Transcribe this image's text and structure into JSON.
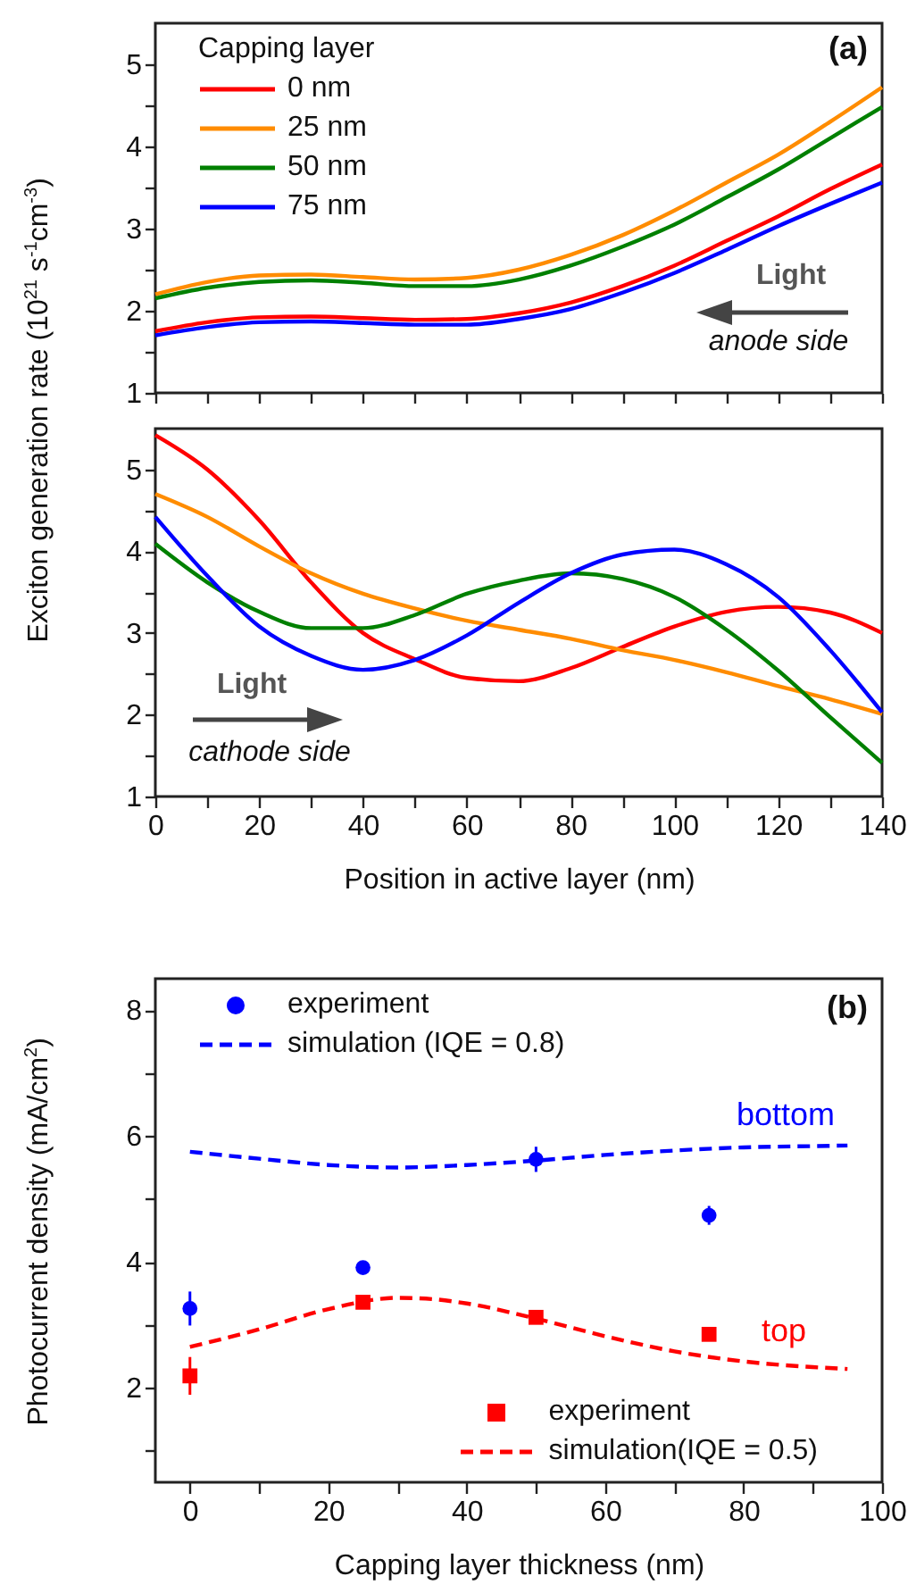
{
  "chart_data": [
    {
      "type": "line",
      "ylabel": "Exciton generation rate (10$^{21}$ s$^{-1}$cm$^{-3}$)",
      "legend_title": "Capping layer",
      "legend": "top left",
      "tick_labels": "y",
      "x": [
        0,
        10,
        20,
        30,
        40,
        50,
        60,
        70,
        80,
        90,
        100,
        110,
        120,
        130,
        140
      ],
      "series": [
        {
          "name": "0 nm",
          "color": "#ff0000",
          "values": [
            1.75,
            1.86,
            1.92,
            1.93,
            1.91,
            1.89,
            1.9,
            1.97,
            2.1,
            2.3,
            2.55,
            2.85,
            3.15,
            3.48,
            3.78
          ]
        },
        {
          "name": "25 nm",
          "color": "#ff8c00",
          "values": [
            2.2,
            2.35,
            2.43,
            2.44,
            2.41,
            2.38,
            2.4,
            2.5,
            2.68,
            2.92,
            3.22,
            3.56,
            3.9,
            4.3,
            4.72
          ]
        },
        {
          "name": "50 nm",
          "color": "#008000",
          "values": [
            2.15,
            2.28,
            2.35,
            2.37,
            2.34,
            2.3,
            2.3,
            2.38,
            2.55,
            2.78,
            3.05,
            3.38,
            3.72,
            4.1,
            4.48
          ]
        },
        {
          "name": "75 nm",
          "color": "#0000ff",
          "values": [
            1.7,
            1.8,
            1.86,
            1.87,
            1.85,
            1.83,
            1.83,
            1.9,
            2.02,
            2.22,
            2.46,
            2.74,
            3.03,
            3.3,
            3.56
          ]
        }
      ],
      "xlim": [
        0,
        140
      ],
      "ylim": [
        1,
        5.5
      ],
      "xticks": [
        0,
        {
          "value": 10,
          "label": null
        },
        20,
        {
          "value": 30,
          "label": null
        },
        40,
        {
          "value": 50,
          "label": null
        },
        60,
        {
          "value": 70,
          "label": null
        },
        80,
        {
          "value": 90,
          "label": null
        },
        100,
        {
          "value": 110,
          "label": null
        },
        120,
        {
          "value": 130,
          "label": null
        },
        140
      ],
      "yticks": [
        1,
        {
          "value": 1.5,
          "label": null
        },
        2,
        {
          "value": 2.5,
          "label": null
        },
        3,
        {
          "value": 3.5,
          "label": null
        },
        4,
        {
          "value": 4.5,
          "label": null
        },
        5
      ],
      "annotations": [
        "(a)",
        "Light",
        "anode side"
      ]
    },
    {
      "type": "line",
      "xlabel": "Position in active layer (nm)",
      "x": [
        0,
        10,
        20,
        30,
        40,
        50,
        60,
        70,
        80,
        90,
        100,
        110,
        120,
        130,
        140
      ],
      "series": [
        {
          "color": "#ff0000",
          "values": [
            5.42,
            5.0,
            4.38,
            3.62,
            3.0,
            2.68,
            2.45,
            2.41,
            2.57,
            2.83,
            3.08,
            3.26,
            3.32,
            3.25,
            3.0
          ]
        },
        {
          "color": "#ff8c00",
          "values": [
            4.7,
            4.42,
            4.06,
            3.73,
            3.48,
            3.3,
            3.15,
            3.04,
            2.93,
            2.79,
            2.67,
            2.52,
            2.35,
            2.19,
            2.01
          ]
        },
        {
          "color": "#008000",
          "values": [
            4.09,
            3.62,
            3.26,
            3.06,
            3.06,
            3.22,
            3.48,
            3.64,
            3.73,
            3.66,
            3.44,
            3.04,
            2.54,
            1.97,
            1.41
          ]
        },
        {
          "color": "#0000ff",
          "values": [
            4.42,
            3.7,
            3.08,
            2.72,
            2.55,
            2.67,
            2.97,
            3.37,
            3.73,
            3.96,
            4.02,
            3.84,
            3.44,
            2.79,
            2.03
          ]
        }
      ],
      "xlim": [
        0,
        140
      ],
      "ylim": [
        1,
        5.5
      ],
      "xticks": [
        0,
        {
          "value": 10,
          "label": null
        },
        20,
        {
          "value": 30,
          "label": null
        },
        40,
        {
          "value": 50,
          "label": null
        },
        60,
        {
          "value": 70,
          "label": null
        },
        80,
        {
          "value": 90,
          "label": null
        },
        100,
        {
          "value": 110,
          "label": null
        },
        120,
        {
          "value": 130,
          "label": null
        },
        140
      ],
      "yticks": [
        1,
        {
          "value": 1.5,
          "label": null
        },
        2,
        {
          "value": 2.5,
          "label": null
        },
        3,
        {
          "value": 3.5,
          "label": null
        },
        4,
        {
          "value": 4.5,
          "label": null
        },
        5
      ],
      "annotations": [
        "Light",
        "cathode side"
      ]
    },
    {
      "type": "scatter",
      "xlabel": "Capping layer thickness (nm)",
      "ylabel": "Photocurrent density (mA/cm$^{2}$)",
      "legend": "top left",
      "series": [
        {
          "name": "experiment",
          "color": "#0000ff",
          "marker": "circle",
          "x": [
            0,
            25,
            50,
            75
          ],
          "values": [
            3.26,
            3.91,
            5.63,
            4.74
          ],
          "errors": [
            0.27,
            0.1,
            0.2,
            0.15
          ]
        },
        {
          "name": "simulation (IQE = 0.8)",
          "color": "#0000ff",
          "type": "line",
          "line_style": "dashed",
          "x": [
            0,
            10,
            20,
            30,
            40,
            50,
            60,
            70,
            80,
            90,
            95
          ],
          "values": [
            5.75,
            5.64,
            5.54,
            5.5,
            5.54,
            5.61,
            5.7,
            5.77,
            5.82,
            5.84,
            5.85
          ]
        },
        {
          "name": "experiment",
          "color": "#ff0000",
          "marker": "square",
          "x": [
            0,
            25,
            50,
            75
          ],
          "values": [
            2.19,
            3.36,
            3.12,
            2.85
          ],
          "errors": [
            0.3,
            0.08,
            0.07,
            0.1
          ]
        },
        {
          "name": "simulation(IQE = 0.5)",
          "color": "#ff0000",
          "type": "line",
          "line_style": "dashed",
          "x": [
            0,
            10,
            20,
            30,
            35,
            40,
            50,
            60,
            70,
            80,
            90,
            95
          ],
          "values": [
            2.65,
            2.93,
            3.25,
            3.43,
            3.41,
            3.34,
            3.1,
            2.82,
            2.58,
            2.42,
            2.33,
            2.3
          ]
        }
      ],
      "xlim": [
        -5,
        100
      ],
      "ylim": [
        0.5,
        8.5
      ],
      "xticks": [
        0,
        {
          "value": 10,
          "label": null
        },
        20,
        {
          "value": 30,
          "label": null
        },
        40,
        {
          "value": 50,
          "label": null
        },
        60,
        {
          "value": 70,
          "label": null
        },
        80,
        {
          "value": 90,
          "label": null
        },
        100
      ],
      "yticks": [
        {
          "value": 1,
          "label": null
        },
        2,
        {
          "value": 3,
          "label": null
        },
        4,
        {
          "value": 5,
          "label": null
        },
        6,
        {
          "value": 7,
          "label": null
        },
        8
      ],
      "annotations": [
        "(b)",
        "bottom",
        "top"
      ]
    }
  ]
}
